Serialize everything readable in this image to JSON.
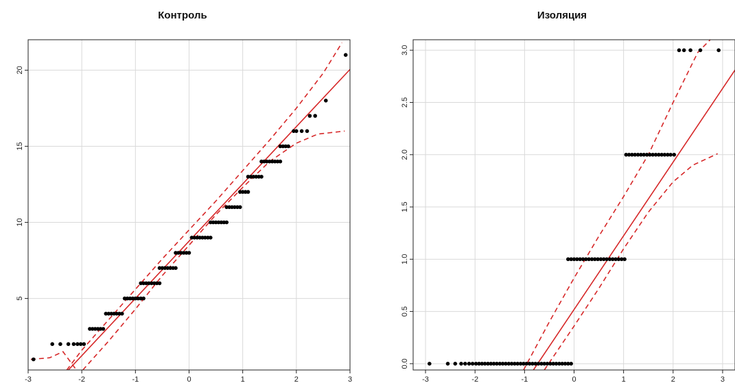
{
  "chart_data": [
    {
      "type": "scatter",
      "title": "Контроль",
      "xlim": [
        -3,
        3
      ],
      "ylim": [
        0.3,
        22
      ],
      "x_ticks": [
        "-3",
        "-2",
        "-1",
        "0",
        "1",
        "2",
        "3"
      ],
      "y_ticks": [
        "5",
        "10",
        "15",
        "20"
      ],
      "grid": true,
      "series": [
        {
          "kind": "points",
          "points": [
            [
              -2.9,
              1
            ],
            [
              -2.55,
              2
            ],
            [
              -2.4,
              2
            ],
            [
              -2.25,
              2
            ],
            [
              -2.15,
              2
            ],
            [
              -2.08,
              2
            ],
            [
              -2.02,
              2
            ],
            [
              -1.96,
              2
            ],
            [
              -1.85,
              3
            ],
            [
              -1.8,
              3
            ],
            [
              -1.75,
              3
            ],
            [
              -1.7,
              3
            ],
            [
              -1.65,
              3
            ],
            [
              -1.6,
              3
            ],
            [
              -1.55,
              4
            ],
            [
              -1.5,
              4
            ],
            [
              -1.45,
              4
            ],
            [
              -1.4,
              4
            ],
            [
              -1.35,
              4
            ],
            [
              -1.3,
              4
            ],
            [
              -1.25,
              4
            ],
            [
              -1.2,
              5
            ],
            [
              -1.15,
              5
            ],
            [
              -1.1,
              5
            ],
            [
              -1.05,
              5
            ],
            [
              -1.0,
              5
            ],
            [
              -0.95,
              5
            ],
            [
              -0.9,
              5
            ],
            [
              -0.85,
              5
            ],
            [
              -0.9,
              6
            ],
            [
              -0.85,
              6
            ],
            [
              -0.8,
              6
            ],
            [
              -0.75,
              6
            ],
            [
              -0.7,
              6
            ],
            [
              -0.65,
              6
            ],
            [
              -0.6,
              6
            ],
            [
              -0.55,
              6
            ],
            [
              -0.55,
              7
            ],
            [
              -0.5,
              7
            ],
            [
              -0.45,
              7
            ],
            [
              -0.4,
              7
            ],
            [
              -0.35,
              7
            ],
            [
              -0.3,
              7
            ],
            [
              -0.25,
              7
            ],
            [
              -0.25,
              8
            ],
            [
              -0.2,
              8
            ],
            [
              -0.15,
              8
            ],
            [
              -0.1,
              8
            ],
            [
              -0.05,
              8
            ],
            [
              0.0,
              8
            ],
            [
              0.05,
              9
            ],
            [
              0.1,
              9
            ],
            [
              0.15,
              9
            ],
            [
              0.2,
              9
            ],
            [
              0.25,
              9
            ],
            [
              0.3,
              9
            ],
            [
              0.35,
              9
            ],
            [
              0.4,
              9
            ],
            [
              0.4,
              10
            ],
            [
              0.45,
              10
            ],
            [
              0.5,
              10
            ],
            [
              0.55,
              10
            ],
            [
              0.6,
              10
            ],
            [
              0.65,
              10
            ],
            [
              0.7,
              10
            ],
            [
              0.7,
              11
            ],
            [
              0.75,
              11
            ],
            [
              0.8,
              11
            ],
            [
              0.85,
              11
            ],
            [
              0.9,
              11
            ],
            [
              0.95,
              11
            ],
            [
              0.95,
              12
            ],
            [
              1.0,
              12
            ],
            [
              1.05,
              12
            ],
            [
              1.1,
              12
            ],
            [
              1.1,
              13
            ],
            [
              1.15,
              13
            ],
            [
              1.2,
              13
            ],
            [
              1.25,
              13
            ],
            [
              1.3,
              13
            ],
            [
              1.35,
              13
            ],
            [
              1.35,
              14
            ],
            [
              1.4,
              14
            ],
            [
              1.45,
              14
            ],
            [
              1.5,
              14
            ],
            [
              1.55,
              14
            ],
            [
              1.6,
              14
            ],
            [
              1.65,
              14
            ],
            [
              1.7,
              14
            ],
            [
              1.7,
              15
            ],
            [
              1.75,
              15
            ],
            [
              1.8,
              15
            ],
            [
              1.85,
              15
            ],
            [
              1.95,
              16
            ],
            [
              2.0,
              16
            ],
            [
              2.1,
              16
            ],
            [
              2.2,
              16
            ],
            [
              2.25,
              17
            ],
            [
              2.35,
              17
            ],
            [
              2.55,
              18
            ],
            [
              2.92,
              21
            ]
          ]
        },
        {
          "kind": "ref-line",
          "points": [
            [
              -2.25,
              0.3
            ],
            [
              3.0,
              20.05
            ]
          ]
        },
        {
          "kind": "band-upper",
          "points": [
            [
              -2.28,
              0.3
            ],
            [
              -2.0,
              1.6
            ],
            [
              -1.5,
              3.6
            ],
            [
              -1.0,
              5.6
            ],
            [
              -0.5,
              7.6
            ],
            [
              0.0,
              9.5
            ],
            [
              0.5,
              11.4
            ],
            [
              1.0,
              13.4
            ],
            [
              1.5,
              15.4
            ],
            [
              2.0,
              17.5
            ],
            [
              2.5,
              19.8
            ],
            [
              2.85,
              21.8
            ]
          ]
        },
        {
          "kind": "band-lower",
          "points": [
            [
              -2.95,
              1.0
            ],
            [
              -2.6,
              1.1
            ],
            [
              -2.35,
              1.5
            ],
            [
              -2.1,
              0.3
            ]
          ]
        },
        {
          "kind": "band-lower",
          "points": [
            [
              -1.98,
              0.3
            ],
            [
              -1.5,
              2.2
            ],
            [
              -1.0,
              4.3
            ],
            [
              -0.5,
              6.5
            ],
            [
              0.0,
              8.5
            ],
            [
              0.5,
              10.5
            ],
            [
              1.0,
              12.3
            ],
            [
              1.5,
              14.0
            ],
            [
              2.0,
              15.2
            ],
            [
              2.4,
              15.8
            ],
            [
              2.9,
              16.0
            ]
          ]
        }
      ]
    },
    {
      "type": "scatter",
      "title": "Изоляция",
      "xlim": [
        -3.25,
        3.25
      ],
      "ylim": [
        -0.06,
        3.1
      ],
      "x_ticks": [
        "-3",
        "-2",
        "-1",
        "0",
        "1",
        "2",
        "3"
      ],
      "y_ticks": [
        "0.0",
        "0.5",
        "1.0",
        "1.5",
        "2.0",
        "2.5",
        "3.0"
      ],
      "grid": true,
      "series": [
        {
          "kind": "points",
          "points": [
            [
              -2.92,
              0
            ],
            [
              -2.55,
              0
            ],
            [
              -2.4,
              0
            ],
            [
              -2.28,
              0
            ],
            [
              -2.2,
              0
            ],
            [
              -2.12,
              0
            ],
            [
              -2.05,
              0
            ],
            [
              -1.98,
              0
            ],
            [
              -1.92,
              0
            ],
            [
              -1.86,
              0
            ],
            [
              -1.8,
              0
            ],
            [
              -1.74,
              0
            ],
            [
              -1.68,
              0
            ],
            [
              -1.62,
              0
            ],
            [
              -1.56,
              0
            ],
            [
              -1.5,
              0
            ],
            [
              -1.44,
              0
            ],
            [
              -1.38,
              0
            ],
            [
              -1.32,
              0
            ],
            [
              -1.26,
              0
            ],
            [
              -1.2,
              0
            ],
            [
              -1.14,
              0
            ],
            [
              -1.08,
              0
            ],
            [
              -1.02,
              0
            ],
            [
              -0.96,
              0
            ],
            [
              -0.9,
              0
            ],
            [
              -0.84,
              0
            ],
            [
              -0.78,
              0
            ],
            [
              -0.72,
              0
            ],
            [
              -0.66,
              0
            ],
            [
              -0.6,
              0
            ],
            [
              -0.54,
              0
            ],
            [
              -0.48,
              0
            ],
            [
              -0.42,
              0
            ],
            [
              -0.36,
              0
            ],
            [
              -0.3,
              0
            ],
            [
              -0.24,
              0
            ],
            [
              -0.18,
              0
            ],
            [
              -0.12,
              0
            ],
            [
              -0.06,
              0
            ],
            [
              -0.12,
              1
            ],
            [
              -0.06,
              1
            ],
            [
              0.0,
              1
            ],
            [
              0.06,
              1
            ],
            [
              0.12,
              1
            ],
            [
              0.18,
              1
            ],
            [
              0.24,
              1
            ],
            [
              0.3,
              1
            ],
            [
              0.36,
              1
            ],
            [
              0.42,
              1
            ],
            [
              0.48,
              1
            ],
            [
              0.54,
              1
            ],
            [
              0.6,
              1
            ],
            [
              0.66,
              1
            ],
            [
              0.72,
              1
            ],
            [
              0.78,
              1
            ],
            [
              0.84,
              1
            ],
            [
              0.9,
              1
            ],
            [
              0.96,
              1
            ],
            [
              1.02,
              1
            ],
            [
              1.05,
              2
            ],
            [
              1.11,
              2
            ],
            [
              1.17,
              2
            ],
            [
              1.23,
              2
            ],
            [
              1.29,
              2
            ],
            [
              1.35,
              2
            ],
            [
              1.41,
              2
            ],
            [
              1.47,
              2
            ],
            [
              1.53,
              2
            ],
            [
              1.59,
              2
            ],
            [
              1.65,
              2
            ],
            [
              1.71,
              2
            ],
            [
              1.77,
              2
            ],
            [
              1.83,
              2
            ],
            [
              1.89,
              2
            ],
            [
              1.95,
              2
            ],
            [
              2.02,
              2
            ],
            [
              2.12,
              3
            ],
            [
              2.22,
              3
            ],
            [
              2.35,
              3
            ],
            [
              2.55,
              3
            ],
            [
              2.92,
              3
            ]
          ]
        },
        {
          "kind": "ref-line",
          "points": [
            [
              -0.82,
              -0.06
            ],
            [
              3.25,
              2.81
            ]
          ]
        },
        {
          "kind": "band-upper",
          "points": [
            [
              -1.02,
              -0.06
            ],
            [
              -0.5,
              0.4
            ],
            [
              0.0,
              0.82
            ],
            [
              0.5,
              1.22
            ],
            [
              1.0,
              1.6
            ],
            [
              1.5,
              2.0
            ],
            [
              2.0,
              2.5
            ],
            [
              2.5,
              2.98
            ],
            [
              2.75,
              3.1
            ]
          ]
        },
        {
          "kind": "band-lower",
          "points": [
            [
              -0.6,
              -0.06
            ],
            [
              0.0,
              0.36
            ],
            [
              0.5,
              0.72
            ],
            [
              1.0,
              1.1
            ],
            [
              1.5,
              1.45
            ],
            [
              2.0,
              1.74
            ],
            [
              2.4,
              1.9
            ],
            [
              2.9,
              2.01
            ]
          ]
        }
      ]
    }
  ]
}
